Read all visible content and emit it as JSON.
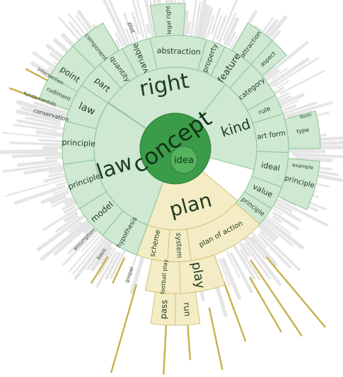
{
  "colors": {
    "center": "#3a9b48",
    "center_stroke": "#2f7f3c",
    "idea": "#55b25f",
    "green_fill": "#cfe8d2",
    "green_fill_strong": "#b8dfbe",
    "green_stroke": "#8cc492",
    "plan_fill": "#f4ecc4",
    "plan_stroke": "#d2c27a",
    "gold_line": "#c8b24a",
    "ghost_line": "#d4d4d4",
    "text_dark": "#1f3a22",
    "text_center": "#133318"
  },
  "root": {
    "label": "concept",
    "child": "idea"
  },
  "ring1": [
    {
      "id": "right",
      "label": "right"
    },
    {
      "id": "kind",
      "label": "kind"
    },
    {
      "id": "law",
      "label": "law"
    },
    {
      "id": "plan",
      "label": "plan"
    }
  ],
  "ring2_labels": {
    "abstraction": "abstraction",
    "feature": "feature",
    "property": "property",
    "quantity": "quantity",
    "variable": "variable",
    "category": "category",
    "rule": "rule",
    "art_form": "art form",
    "law2": "law",
    "part": "part",
    "principle_a": "principle",
    "principle_b": "principle",
    "point": "point",
    "component": "component",
    "model": "model",
    "hypothesis": "hypothesis",
    "assumption": "assumption",
    "ideal": "ideal",
    "value": "value",
    "principle_c": "principle",
    "principle_d": "principle",
    "plan_of_action": "plan of action",
    "play": "play",
    "system": "system",
    "scheme": "scheme",
    "football_play": "football play",
    "run": "run",
    "pass": "pass",
    "attraction": "attraction",
    "aspect": "aspect",
    "legal_right": "legal right",
    "rudiment": "rudiment",
    "conservation": "conservation",
    "intersection": "intersection",
    "plot": "plot",
    "example": "example",
    "form": "form",
    "type": "type",
    "aspect_small": "aspect",
    "basis": "basis",
    "gospel": "gospel",
    "fundamentals": "fundamentals"
  }
}
